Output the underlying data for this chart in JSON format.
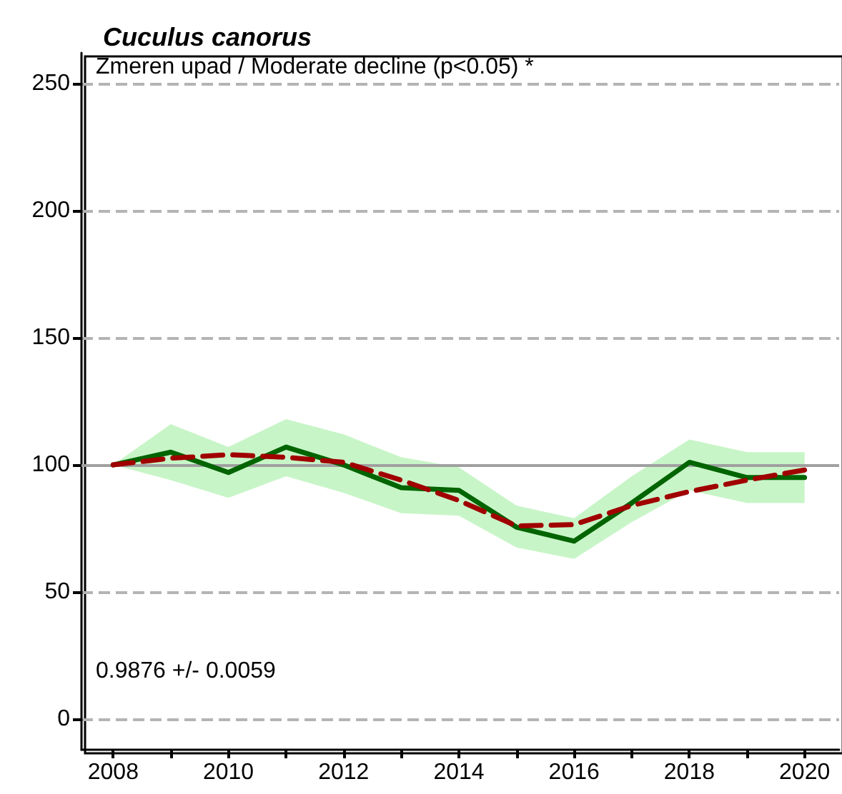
{
  "chart_data": {
    "type": "line",
    "title": "Cuculus canorus",
    "x": [
      2008,
      2009,
      2010,
      2011,
      2012,
      2013,
      2014,
      2015,
      2016,
      2017,
      2018,
      2019,
      2020
    ],
    "series": [
      {
        "color": "#006400",
        "line_style": "solid",
        "values": [
          100,
          105,
          97,
          107,
          100,
          91,
          90,
          75.5,
          70,
          85,
          101,
          95,
          95
        ],
        "lower": [
          100,
          94,
          87,
          95.5,
          89,
          81,
          80,
          67.5,
          63,
          77.5,
          90,
          85,
          85
        ],
        "upper": [
          100,
          116,
          107,
          118,
          112,
          103,
          99,
          84,
          79,
          95.5,
          110,
          105,
          105
        ]
      },
      {
        "color": "#a00000",
        "line_style": "dashed",
        "values": [
          100,
          102.6,
          104,
          103,
          101,
          94,
          86,
          76,
          76.5,
          84,
          89.5,
          94,
          98
        ]
      }
    ],
    "marker": "none",
    "grid": "y",
    "xlim": [
      2007.45,
      2020.6
    ],
    "xticks": [
      2008,
      {
        "value": 2009,
        "label": null
      },
      2010,
      {
        "value": 2011,
        "label": null
      },
      2012,
      {
        "value": 2013,
        "label": null
      },
      2014,
      {
        "value": 2015,
        "label": null
      },
      2016,
      {
        "value": 2017,
        "label": null
      },
      2018,
      {
        "value": 2019,
        "label": null
      },
      2020
    ],
    "ylim": [
      -12,
      262
    ],
    "yticks": [
      0,
      50,
      100,
      150,
      200,
      250
    ],
    "ref_lines": [
      {
        "axis": "y",
        "value": 100,
        "color": "#a0a0a0",
        "line_style": "solid"
      }
    ],
    "annotations": [
      "Zmeren upad / Moderate decline (p<0.05) *",
      "0.9876 +/- 0.0059"
    ]
  }
}
